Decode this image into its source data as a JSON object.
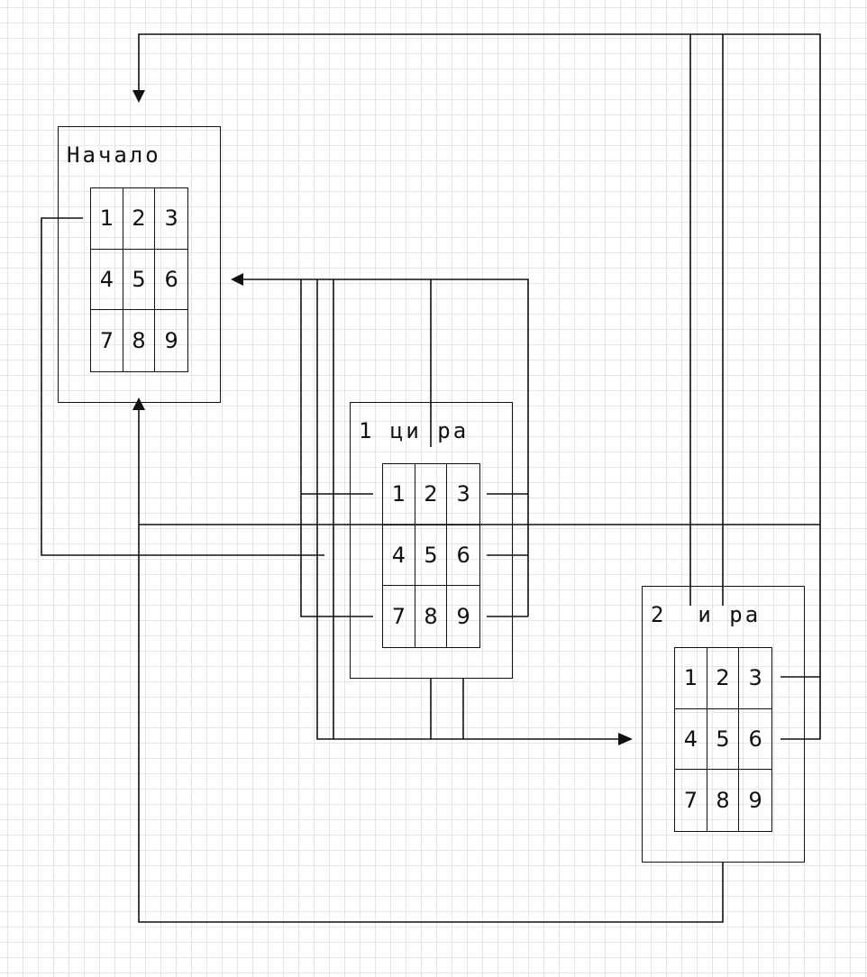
{
  "states": [
    {
      "id": "start",
      "title": "Начало",
      "keys": [
        "1",
        "2",
        "3",
        "4",
        "5",
        "6",
        "7",
        "8",
        "9"
      ]
    },
    {
      "id": "digit1",
      "title": "1 ци ра",
      "keys": [
        "1",
        "2",
        "3",
        "4",
        "5",
        "6",
        "7",
        "8",
        "9"
      ]
    },
    {
      "id": "digit2",
      "title": "2  и ра",
      "keys": [
        "1",
        "2",
        "3",
        "4",
        "5",
        "6",
        "7",
        "8",
        "9"
      ]
    }
  ],
  "line_color": "#111111",
  "grid_color": "#e6e6e6"
}
